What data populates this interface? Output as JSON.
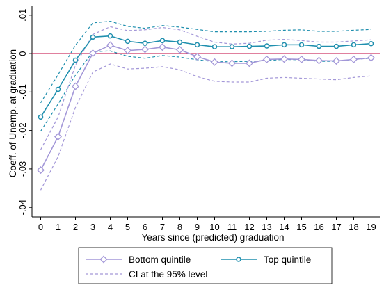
{
  "chart_data": {
    "type": "line",
    "xlabel": "Years since (predicted) graduation",
    "ylabel": "Coeff. of Unemp. at graduation",
    "x": [
      0,
      1,
      2,
      3,
      4,
      5,
      6,
      7,
      8,
      9,
      10,
      11,
      12,
      13,
      14,
      15,
      16,
      17,
      18,
      19
    ],
    "xlim": [
      -0.5,
      19.5
    ],
    "ylim": [
      -0.0425,
      0.0125
    ],
    "y_ticks": [
      {
        "value": 0.01,
        "label": ".01"
      },
      {
        "value": 0,
        "label": "0"
      },
      {
        "value": -0.01,
        "label": "-.01"
      },
      {
        "value": -0.02,
        "label": "-.02"
      },
      {
        "value": -0.03,
        "label": "-.03"
      },
      {
        "value": -0.04,
        "label": "-.04"
      }
    ],
    "reference_line": {
      "y": 0,
      "color": "#c0003c"
    },
    "series": [
      {
        "name": "Bottom quintile",
        "role": "estimate",
        "color": "#a397d8",
        "marker": "diamond",
        "values": [
          -0.0303,
          -0.0216,
          -0.0085,
          0.0001,
          0.0022,
          0.0008,
          0.0011,
          0.0017,
          0.001,
          -0.0008,
          -0.0022,
          -0.0025,
          -0.0025,
          -0.0015,
          -0.0014,
          -0.0015,
          -0.0018,
          -0.0019,
          -0.0015,
          -0.0011
        ]
      },
      {
        "name": "Bottom quintile upper CI",
        "role": "ci",
        "color": "#a397d8",
        "values": [
          -0.025,
          -0.0165,
          -0.003,
          0.005,
          0.007,
          0.006,
          0.0062,
          0.0068,
          0.0062,
          0.0045,
          0.003,
          0.0025,
          0.0027,
          0.0035,
          0.0037,
          0.0034,
          0.003,
          0.003,
          0.0033,
          0.0036
        ]
      },
      {
        "name": "Bottom quintile lower CI",
        "role": "ci",
        "color": "#a397d8",
        "values": [
          -0.0355,
          -0.0268,
          -0.014,
          -0.0048,
          -0.0027,
          -0.004,
          -0.0038,
          -0.0034,
          -0.0042,
          -0.006,
          -0.0072,
          -0.0074,
          -0.0074,
          -0.0064,
          -0.0062,
          -0.0064,
          -0.0066,
          -0.0068,
          -0.0062,
          -0.0058
        ]
      },
      {
        "name": "Top quintile",
        "role": "estimate",
        "color": "#1f8fae",
        "marker": "circle",
        "values": [
          -0.0165,
          -0.0093,
          -0.0017,
          0.0043,
          0.0046,
          0.0032,
          0.0027,
          0.0034,
          0.003,
          0.0023,
          0.0018,
          0.0018,
          0.0019,
          0.002,
          0.0023,
          0.0023,
          0.0019,
          0.0019,
          0.0023,
          0.0026
        ]
      },
      {
        "name": "Top quintile upper CI",
        "role": "ci",
        "color": "#1f8fae",
        "values": [
          -0.0128,
          -0.0055,
          0.0022,
          0.008,
          0.0084,
          0.0071,
          0.0066,
          0.0073,
          0.0069,
          0.0063,
          0.0057,
          0.0057,
          0.0057,
          0.0058,
          0.0061,
          0.0062,
          0.0058,
          0.0058,
          0.0061,
          0.0063
        ]
      },
      {
        "name": "Top quintile lower CI",
        "role": "ci",
        "color": "#1f8fae",
        "values": [
          -0.0202,
          -0.0131,
          -0.0056,
          0.0005,
          0.0007,
          -0.0007,
          -0.0012,
          -0.0005,
          -0.0009,
          -0.0016,
          -0.0021,
          -0.0021,
          -0.002,
          -0.0018,
          -0.0015,
          -0.0016,
          -0.002,
          -0.002,
          -0.0015,
          -0.0012
        ]
      }
    ],
    "legend": {
      "placement": "bottom",
      "entries": [
        {
          "label": "Bottom quintile",
          "color": "#a397d8",
          "style": "solid",
          "marker": "diamond"
        },
        {
          "label": "Top quintile",
          "color": "#1f8fae",
          "style": "solid",
          "marker": "circle"
        },
        {
          "label": "CI at the 95% level",
          "color": "#a397d8",
          "style": "dashed",
          "marker": "none"
        }
      ]
    },
    "grid": false
  }
}
